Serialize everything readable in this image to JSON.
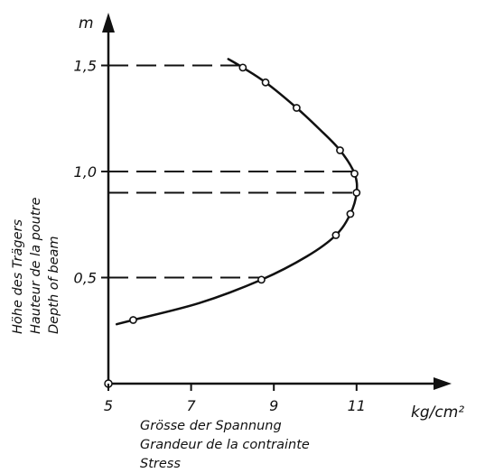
{
  "chart_data": {
    "type": "scatter",
    "title": "",
    "x_axis": {
      "unit_label": "kg/cm²",
      "labels": [
        "Grösse der Spannung",
        "Grandeur de la contrainte",
        "Stress"
      ],
      "range": [
        5,
        12.5
      ],
      "ticks": [
        5,
        7,
        9,
        11
      ],
      "tick_labels": [
        "5",
        "7",
        "9",
        "11"
      ]
    },
    "y_axis": {
      "unit_label": "m",
      "labels": [
        "Höhe des Trägers",
        "Hauteur de la poutre",
        "Depth of beam"
      ],
      "range": [
        0,
        1.85
      ],
      "ticks": [
        0.5,
        1.0,
        1.5
      ],
      "tick_labels": [
        "0,5",
        "1,0",
        "1,5"
      ]
    },
    "series": [
      {
        "points": [
          {
            "x": 5.6,
            "y": 0.3
          },
          {
            "x": 8.7,
            "y": 0.49
          },
          {
            "x": 10.5,
            "y": 0.7
          },
          {
            "x": 10.85,
            "y": 0.8
          },
          {
            "x": 11.0,
            "y": 0.9
          },
          {
            "x": 10.95,
            "y": 0.99
          },
          {
            "x": 10.6,
            "y": 1.1
          },
          {
            "x": 9.55,
            "y": 1.3
          },
          {
            "x": 8.8,
            "y": 1.42
          },
          {
            "x": 8.25,
            "y": 1.49
          }
        ],
        "curve": [
          {
            "x": 5.2,
            "y": 0.28
          },
          {
            "x": 5.6,
            "y": 0.3
          },
          {
            "x": 7.2,
            "y": 0.38
          },
          {
            "x": 8.7,
            "y": 0.49
          },
          {
            "x": 9.8,
            "y": 0.6
          },
          {
            "x": 10.5,
            "y": 0.7
          },
          {
            "x": 10.85,
            "y": 0.8
          },
          {
            "x": 11.0,
            "y": 0.9
          },
          {
            "x": 10.95,
            "y": 0.99
          },
          {
            "x": 10.6,
            "y": 1.1
          },
          {
            "x": 10.1,
            "y": 1.2
          },
          {
            "x": 9.55,
            "y": 1.3
          },
          {
            "x": 8.8,
            "y": 1.42
          },
          {
            "x": 8.25,
            "y": 1.49
          },
          {
            "x": 7.9,
            "y": 1.53
          }
        ],
        "color": "#111111"
      }
    ],
    "reference_lines": [
      {
        "y": 1.5,
        "x_end": 8.25
      },
      {
        "y": 1.0,
        "x_end": 10.95
      },
      {
        "y": 0.9,
        "x_end": 11.0
      },
      {
        "y": 0.5,
        "x_end": 8.7
      }
    ],
    "grid": false,
    "legend": "none"
  }
}
